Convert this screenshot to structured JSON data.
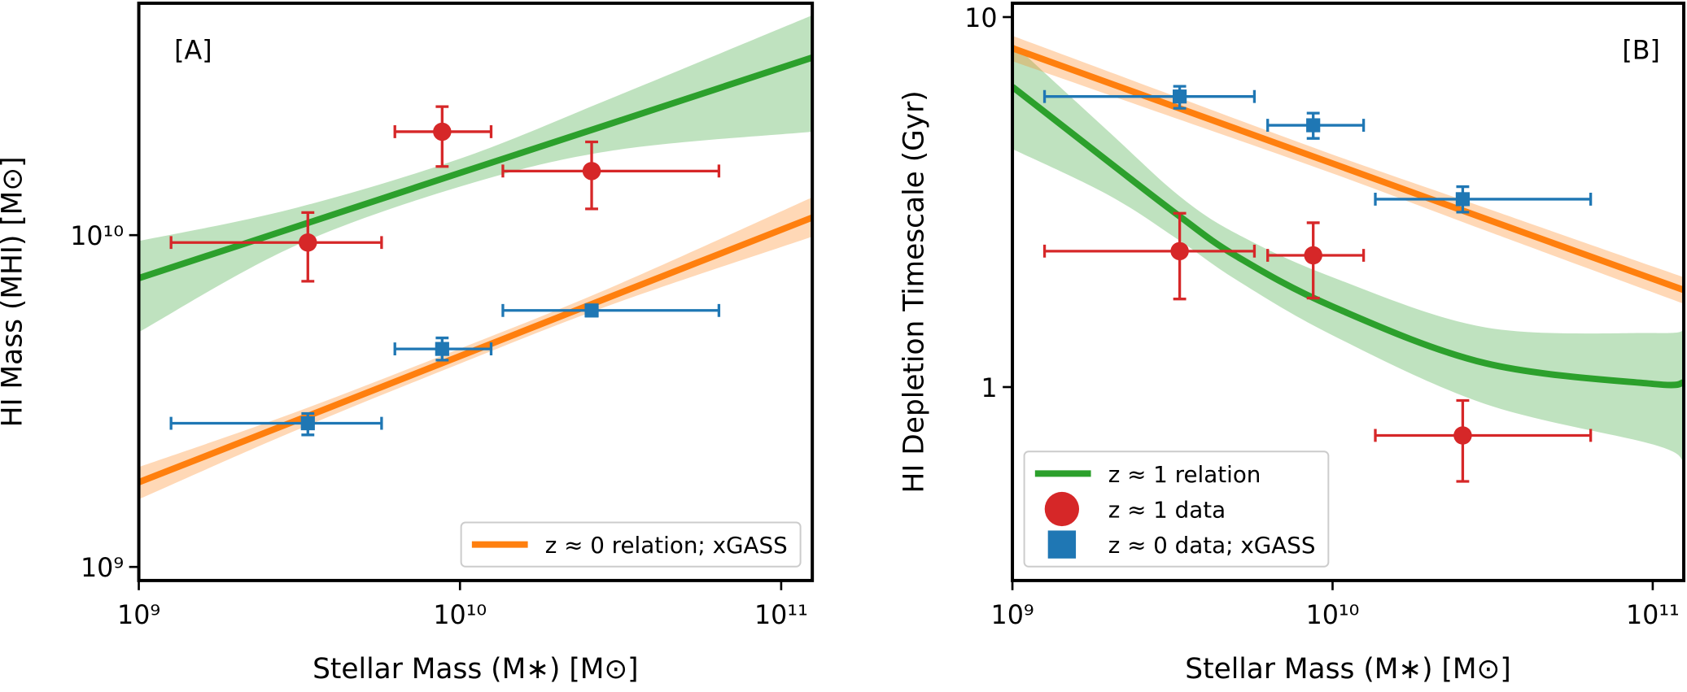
{
  "chart_data": [
    {
      "type": "line",
      "label": "[A]",
      "xlabel": "Stellar Mass (M∗) [M⊙]",
      "ylabel": "HI Mass (MHI) [M⊙]",
      "log_x": true,
      "log_y": true,
      "xlim": [
        1000000000,
        125000000000
      ],
      "ylim": [
        910000000,
        50000000000
      ],
      "xticks": [
        {
          "value": 1000000000,
          "label": "10⁹"
        },
        {
          "value": 10000000000,
          "label": "10¹⁰"
        },
        {
          "value": 100000000000,
          "label": "10¹¹"
        }
      ],
      "yticks": [
        {
          "value": 1000000000,
          "label": "10⁹"
        },
        {
          "value": 10000000000,
          "label": "10¹⁰"
        }
      ],
      "legend": "lower right",
      "lines": [
        {
          "color": "#2ca02c",
          "x": [
            1000000000,
            3000000000,
            10000000000,
            30000000000,
            125000000000
          ],
          "values": [
            7420000000,
            10500000000,
            15400000000,
            21800000000,
            34300000000
          ],
          "band_low": [
            5100000000,
            9200000000,
            14000000000,
            18000000000,
            20500000000
          ],
          "band_high": [
            9600000000,
            12000000000,
            17000000000,
            26000000000,
            46000000000
          ]
        },
        {
          "name": "z ≈ 0 relation; xGASS",
          "color": "#ff7f0e",
          "x": [
            1000000000,
            3000000000,
            10000000000,
            30000000000,
            125000000000
          ],
          "values": [
            1800000000,
            2730000000,
            4320000000,
            6570000000,
            11300000000
          ],
          "band_low": [
            1600000000,
            2550000000,
            4100000000,
            6200000000,
            9900000000
          ],
          "band_high": [
            2000000000,
            2900000000,
            4550000000,
            7000000000,
            13000000000
          ]
        }
      ],
      "points": [
        {
          "color": "#d62728",
          "marker": "circle",
          "x": [
            3360000000,
            8800000000,
            25700000000
          ],
          "values": [
            9500000000,
            20500000000,
            15600000000
          ],
          "xmin": [
            1260000000,
            6270000000,
            13600000000
          ],
          "xmax": [
            5700000000,
            12500000000,
            64000000000
          ],
          "ymin": [
            7260000000,
            16100000000,
            12000000000
          ],
          "ymax": [
            11700000000,
            24400000000,
            19100000000
          ]
        },
        {
          "color": "#1f77b4",
          "marker": "square",
          "x": [
            3360000000,
            8800000000,
            25700000000
          ],
          "values": [
            2710000000,
            4540000000,
            5930000000
          ],
          "xmin": [
            1260000000,
            6270000000,
            13600000000
          ],
          "xmax": [
            5700000000,
            12500000000,
            64000000000
          ],
          "ymin": [
            2500000000,
            4200000000,
            5700000000
          ],
          "ymax": [
            2900000000,
            4900000000,
            6100000000
          ]
        }
      ]
    },
    {
      "type": "line",
      "label": "[B]",
      "xlabel": "Stellar Mass (M∗) [M⊙]",
      "ylabel": "HI Depletion Timescale (Gyr)",
      "log_x": true,
      "log_y": true,
      "xlim": [
        1000000000,
        125000000000
      ],
      "ylim": [
        0.3,
        10.9
      ],
      "xticks": [
        {
          "value": 1000000000,
          "label": "10⁹"
        },
        {
          "value": 10000000000,
          "label": "10¹⁰"
        },
        {
          "value": 100000000000,
          "label": "10¹¹"
        }
      ],
      "yticks": [
        1,
        10
      ],
      "legend": "lower left",
      "lines": [
        {
          "name": "z ≈ 1 relation",
          "color": "#2ca02c",
          "x": [
            1000000000,
            2000000000,
            3300000000,
            5000000000,
            10000000000,
            30000000000,
            100000000000,
            125000000000
          ],
          "values": [
            6.48,
            4.06,
            2.91,
            2.26,
            1.65,
            1.16,
            1.02,
            1.03
          ],
          "band_low": [
            4.4,
            3.3,
            2.5,
            1.95,
            1.38,
            0.9,
            0.7,
            0.63
          ],
          "band_high": [
            8.5,
            4.9,
            3.3,
            2.6,
            1.98,
            1.45,
            1.4,
            1.42
          ]
        },
        {
          "color": "#ff7f0e",
          "x": [
            1000000000,
            3000000000,
            10000000000,
            30000000000,
            125000000000
          ],
          "values": [
            8.24,
            5.85,
            4.02,
            2.85,
            1.83
          ],
          "band_low": [
            7.6,
            5.45,
            3.78,
            2.65,
            1.68
          ],
          "band_high": [
            8.9,
            6.25,
            4.25,
            3.05,
            1.98
          ]
        }
      ],
      "points": [
        {
          "name": "z ≈ 1 data",
          "color": "#d62728",
          "marker": "circle",
          "x": [
            3330000000,
            8700000000,
            25500000000
          ],
          "values": [
            2.33,
            2.27,
            0.74
          ],
          "xmin": [
            1260000000,
            6270000000,
            13600000000
          ],
          "xmax": [
            5700000000,
            12500000000,
            64000000000
          ],
          "ymin": [
            1.73,
            1.74,
            0.556
          ],
          "ymax": [
            2.95,
            2.78,
            0.92
          ]
        },
        {
          "name": "z ≈ 0 data; xGASS",
          "color": "#1f77b4",
          "marker": "square",
          "x": [
            3330000000,
            8700000000,
            25500000000
          ],
          "values": [
            6.1,
            5.1,
            3.22
          ],
          "xmin": [
            1260000000,
            6270000000,
            13600000000
          ],
          "xmax": [
            5700000000,
            12500000000,
            64000000000
          ],
          "ymin": [
            5.67,
            4.7,
            2.97
          ],
          "ymax": [
            6.5,
            5.5,
            3.48
          ]
        }
      ]
    }
  ]
}
